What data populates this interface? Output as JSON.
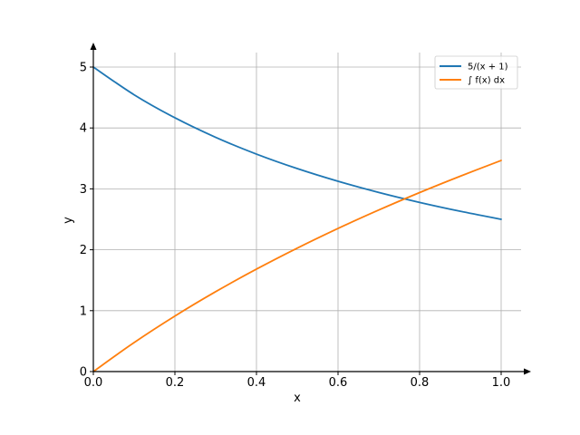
{
  "chart_data": {
    "type": "line",
    "title": "",
    "xlabel": "x",
    "ylabel": "y",
    "xlim": [
      0,
      1.05
    ],
    "ylim": [
      0,
      5.3
    ],
    "x_ticks": [
      0.0,
      0.2,
      0.4,
      0.6,
      0.8,
      1.0
    ],
    "x_tick_labels": [
      "0.0",
      "0.2",
      "0.4",
      "0.6",
      "0.8",
      "1.0"
    ],
    "y_ticks": [
      0,
      1,
      2,
      3,
      4,
      5
    ],
    "y_tick_labels": [
      "0",
      "1",
      "2",
      "3",
      "4",
      "5"
    ],
    "grid": true,
    "legend_position": "top-right",
    "x": [
      0.0,
      0.1,
      0.2,
      0.3,
      0.4,
      0.5,
      0.6,
      0.7,
      0.8,
      0.9,
      1.0
    ],
    "series": [
      {
        "name": "5/(x + 1)",
        "color": "#1f77b4",
        "values": [
          5.0,
          4.545,
          4.167,
          3.846,
          3.571,
          3.333,
          3.125,
          2.941,
          2.778,
          2.632,
          2.5
        ]
      },
      {
        "name": "∫ f(x) dx",
        "color": "#ff7f0e",
        "values": [
          0.0,
          0.477,
          0.912,
          1.312,
          1.682,
          2.027,
          2.35,
          2.653,
          2.939,
          3.209,
          3.466
        ]
      }
    ]
  }
}
